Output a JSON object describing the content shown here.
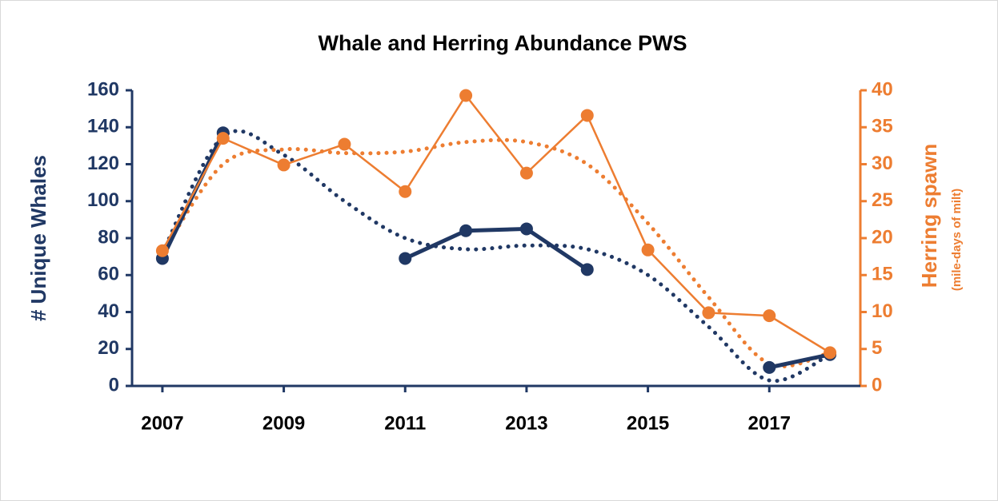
{
  "chart_data": {
    "type": "line",
    "title": "Whale and Herring Abundance PWS",
    "ylabel": "# Unique Whales",
    "y2label": "Herring spawn",
    "y2sublabel": "(mile-days of milt)",
    "x": [
      2007,
      2008,
      2009,
      2010,
      2011,
      2012,
      2013,
      2014,
      2015,
      2016,
      2017,
      2018
    ],
    "xlim": [
      2006.5,
      2018.5
    ],
    "xticks": [
      2007,
      2009,
      2011,
      2013,
      2015,
      2017
    ],
    "ylim": [
      0,
      160
    ],
    "yticks": [
      0,
      20,
      40,
      60,
      80,
      100,
      120,
      140,
      160
    ],
    "y2lim": [
      0,
      40
    ],
    "y2ticks": [
      0,
      5,
      10,
      15,
      20,
      25,
      30,
      35,
      40
    ],
    "series": [
      {
        "color": "#203864",
        "style": "dotted",
        "values": [
          72,
          135,
          125,
          100,
          80,
          74,
          76,
          74,
          60,
          32,
          3,
          17
        ]
      },
      {
        "color": "#ed7d31",
        "style": "dotted",
        "axis": "y2",
        "values": [
          18,
          30,
          32,
          31.5,
          31.7,
          33,
          33,
          30,
          22,
          12,
          3,
          4.5
        ]
      },
      {
        "color": "#203864",
        "style": "solid",
        "values": [
          69,
          137,
          null,
          null,
          69,
          84,
          85,
          63,
          null,
          null,
          10,
          17
        ]
      },
      {
        "color": "#ed7d31",
        "style": "solid",
        "axis": "y2",
        "values": [
          18.3,
          33.5,
          29.9,
          32.7,
          26.3,
          39.3,
          28.8,
          36.6,
          18.4,
          9.9,
          9.5,
          4.5
        ]
      }
    ]
  }
}
